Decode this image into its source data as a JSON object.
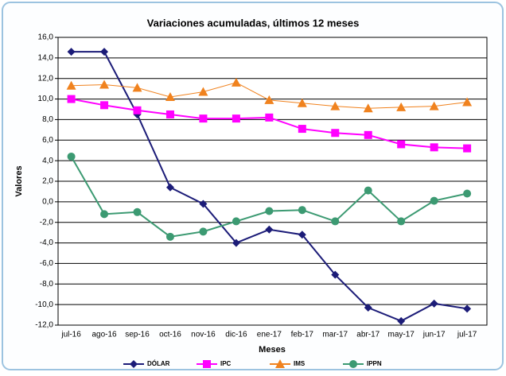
{
  "chart_data": {
    "type": "line",
    "title": "Variaciones acumuladas, últimos 12 meses",
    "x_label": "Meses",
    "y_label": "Valores",
    "categories": [
      "jul-16",
      "ago-16",
      "sep-16",
      "oct-16",
      "nov-16",
      "dic-16",
      "ene-17",
      "feb-17",
      "mar-17",
      "abr-17",
      "may-17",
      "jun-17",
      "jul-17"
    ],
    "series": [
      {
        "name": "DÓLAR",
        "color": "#1c1c78",
        "marker": "diamond",
        "values": [
          14.6,
          14.6,
          8.5,
          1.4,
          -0.2,
          -4.0,
          -2.7,
          -3.2,
          -7.1,
          -10.3,
          -11.6,
          -9.9,
          -10.4
        ]
      },
      {
        "name": "IPC",
        "color": "#ff00ff",
        "marker": "square",
        "values": [
          10.0,
          9.4,
          8.9,
          8.5,
          8.1,
          8.1,
          8.2,
          7.1,
          6.7,
          6.5,
          5.6,
          5.3,
          5.2
        ]
      },
      {
        "name": "IMS",
        "color": "#f0821e",
        "marker": "triangle",
        "values": [
          11.3,
          11.4,
          11.1,
          10.2,
          10.7,
          11.6,
          9.9,
          9.6,
          9.3,
          9.1,
          9.2,
          9.3,
          9.7
        ]
      },
      {
        "name": "IPPN",
        "color": "#3c9a72",
        "marker": "circle",
        "values": [
          4.4,
          -1.2,
          -1.0,
          -3.4,
          -2.9,
          -1.9,
          -0.9,
          -0.8,
          -1.9,
          1.1,
          -1.9,
          0.1,
          0.8
        ]
      }
    ],
    "ylim": [
      -12,
      16
    ],
    "yticks": [
      {
        "value": -12,
        "label": "-12,0"
      },
      {
        "value": -10,
        "label": "-10,0"
      },
      {
        "value": -8,
        "label": "-8,0"
      },
      {
        "value": -6,
        "label": "-6,0"
      },
      {
        "value": -4,
        "label": "-4,0"
      },
      {
        "value": -2,
        "label": "-2,0"
      },
      {
        "value": 0,
        "label": "0,0"
      },
      {
        "value": 2,
        "label": "2,0"
      },
      {
        "value": 4,
        "label": "4,0"
      },
      {
        "value": 6,
        "label": "6,0"
      },
      {
        "value": 8,
        "label": "8,0"
      },
      {
        "value": 10,
        "label": "10,0"
      },
      {
        "value": 12,
        "label": "12,0"
      },
      {
        "value": 14,
        "label": "14,0"
      },
      {
        "value": 16,
        "label": "16,0"
      }
    ],
    "grid": true,
    "legend": "bottom"
  }
}
